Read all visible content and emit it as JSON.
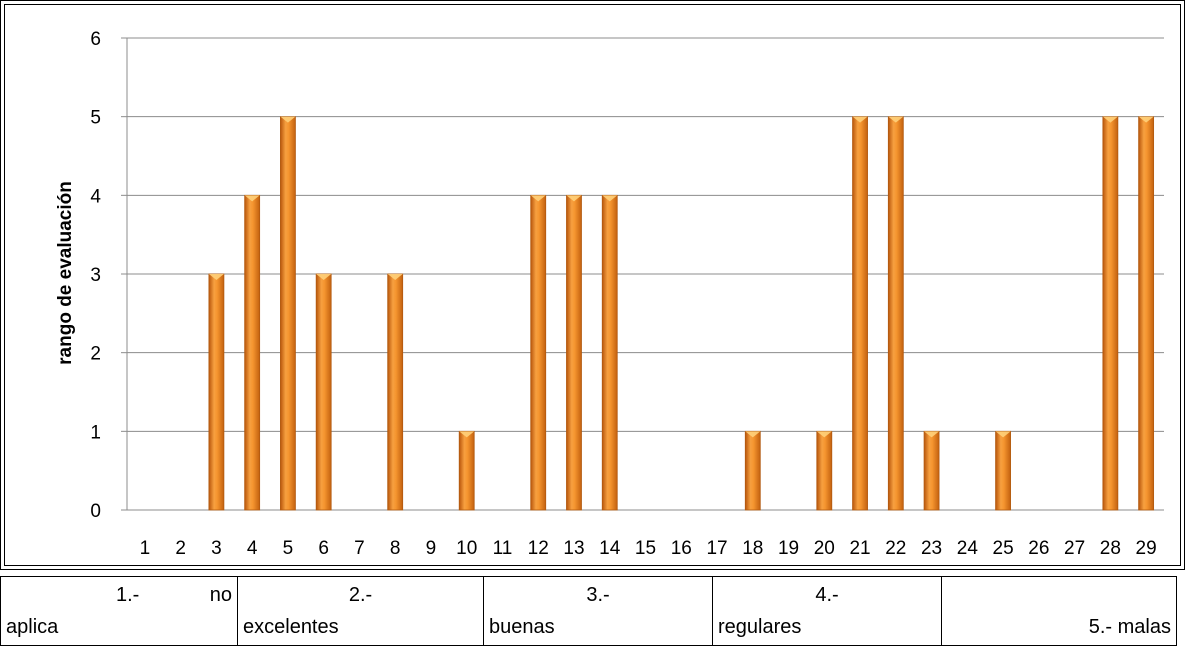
{
  "chart_data": {
    "type": "bar",
    "title": "",
    "xlabel": "",
    "ylabel": "rango de evaluación",
    "ylim": [
      0,
      6
    ],
    "yticks": [
      "0",
      "1",
      "2",
      "3",
      "4",
      "5",
      "6"
    ],
    "grid": true,
    "categories": [
      "1",
      "2",
      "3",
      "4",
      "5",
      "6",
      "7",
      "8",
      "9",
      "10",
      "11",
      "12",
      "13",
      "14",
      "15",
      "16",
      "17",
      "18",
      "19",
      "20",
      "21",
      "22",
      "23",
      "24",
      "25",
      "26",
      "27",
      "28",
      "29"
    ],
    "values": [
      0,
      0,
      3,
      4,
      5,
      3,
      0,
      3,
      0,
      1,
      0,
      4,
      4,
      4,
      0,
      0,
      0,
      1,
      0,
      1,
      5,
      5,
      1,
      0,
      1,
      0,
      0,
      5,
      5
    ],
    "bar_color": "#f28a22"
  },
  "legend": [
    {
      "line1": "1.- no",
      "line2": "aplica"
    },
    {
      "line1": "2.-",
      "line2": "excelentes"
    },
    {
      "line1": "3.-",
      "line2": "buenas"
    },
    {
      "line1": "4.-",
      "line2": "regulares"
    },
    {
      "line1": "",
      "line2": "5.- malas"
    }
  ]
}
